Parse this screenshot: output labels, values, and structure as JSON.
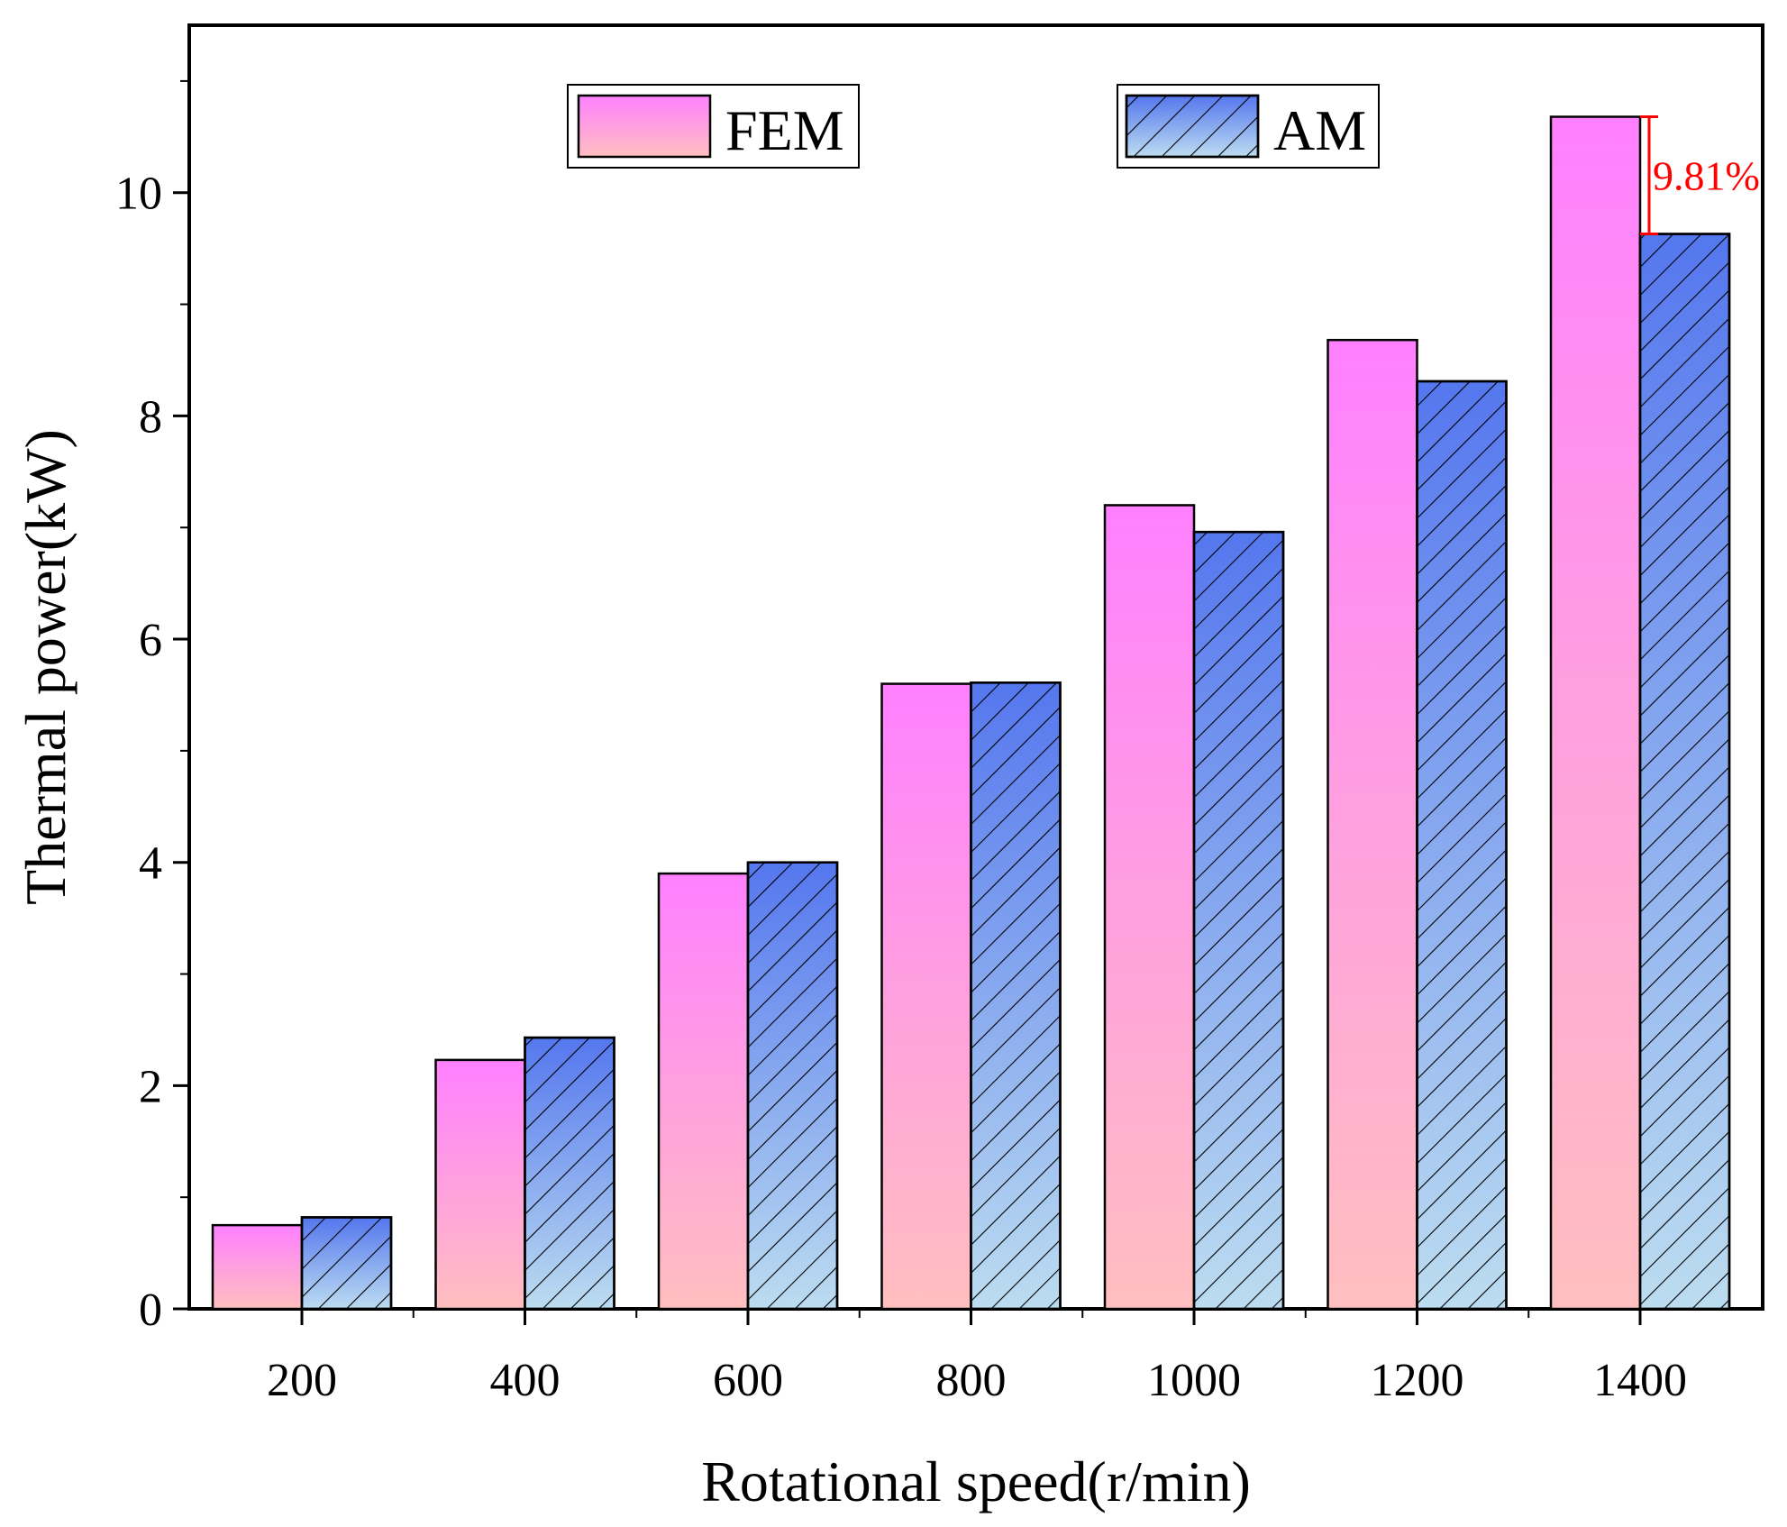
{
  "chart_data": {
    "type": "bar",
    "title": "",
    "xlabel": "Rotational speed(r/min)",
    "ylabel": "Thermal power(kW)",
    "categories": [
      "200",
      "400",
      "600",
      "800",
      "1000",
      "1200",
      "1400"
    ],
    "series": [
      {
        "name": "FEM",
        "values": [
          0.75,
          2.23,
          3.9,
          5.6,
          7.2,
          8.68,
          10.68
        ],
        "color_top": "#ff80ff",
        "color_bottom": "#ffbfbf",
        "pattern": "solid"
      },
      {
        "name": "AM",
        "values": [
          0.82,
          2.43,
          4.0,
          5.61,
          6.96,
          8.31,
          9.63
        ],
        "color_top": "#5577ee",
        "color_bottom": "#bcdcf0",
        "pattern": "hatched"
      }
    ],
    "ylim": [
      0,
      11.5
    ],
    "yticks": [
      "0",
      "2",
      "4",
      "6",
      "8",
      "10"
    ],
    "legend_position": "top",
    "annotations": [
      {
        "text": "9.81%",
        "category": "1400",
        "from_value": 9.63,
        "to_value": 10.68,
        "color": "#ff0000"
      }
    ]
  }
}
